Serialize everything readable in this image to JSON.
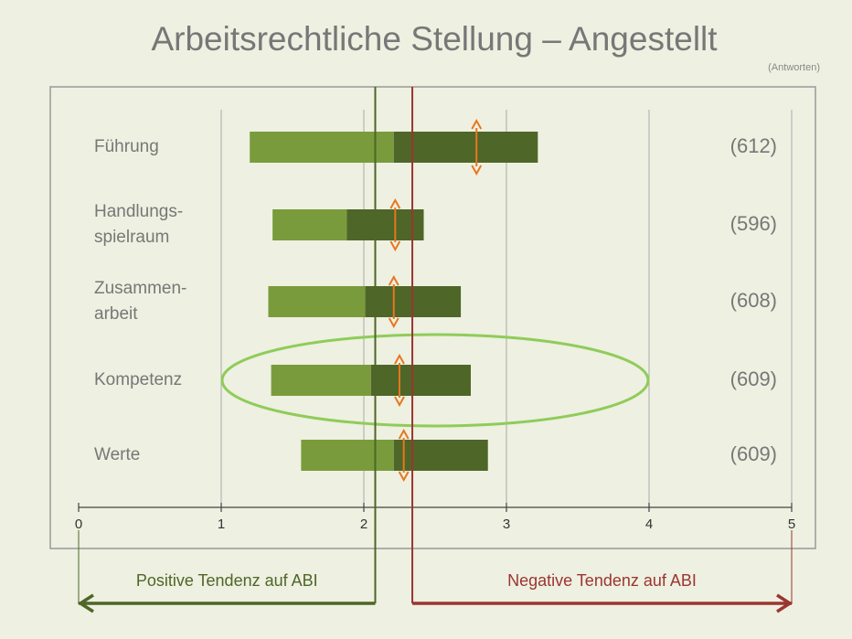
{
  "chart_data": {
    "type": "floating_bar",
    "title": "Arbeitsrechtliche Stellung – Angestellt",
    "subtitle": "(Antworten)",
    "categories": [
      [
        "Führung"
      ],
      [
        "Handlungs-",
        "spielraum"
      ],
      [
        "Zusammen-",
        "arbeit"
      ],
      [
        "Kompetenz"
      ],
      [
        "Werte"
      ]
    ],
    "counts": [
      "(612)",
      "(596)",
      "(608)",
      "(609)",
      "(609)"
    ],
    "bar_start": [
      1.2,
      1.36,
      1.33,
      1.35,
      1.56
    ],
    "bar_mid": [
      2.21,
      1.88,
      2.01,
      2.05,
      2.21
    ],
    "bar_end": [
      3.22,
      2.42,
      2.68,
      2.75,
      2.87
    ],
    "markers": [
      2.79,
      2.22,
      2.21,
      2.25,
      2.28
    ],
    "colors": {
      "lower": "#7a9b3c",
      "upper": "#4e6628",
      "marker": "#e8761e"
    },
    "xlim": [
      0,
      5
    ],
    "xticks": [
      0,
      1,
      2,
      3,
      4,
      5
    ],
    "grid": true,
    "reference_lines": [
      {
        "value": 2.08,
        "color": "#4e6628",
        "label": "Positive Tendenz auf ABI",
        "direction": "left"
      },
      {
        "value": 2.34,
        "color": "#9b3530",
        "label": "Negative Tendenz  auf ABI",
        "direction": "right"
      }
    ]
  }
}
